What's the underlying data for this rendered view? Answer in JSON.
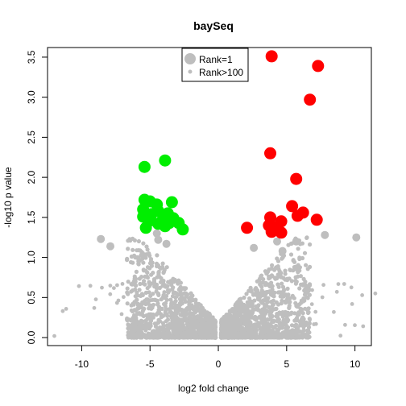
{
  "chart_data": {
    "type": "scatter",
    "title": "baySeq",
    "xlabel": "log2 fold change",
    "ylabel": "-log10 p value",
    "xlim": [
      -12.5,
      11.2
    ],
    "ylim": [
      -0.1,
      3.62
    ],
    "xticks": [
      -10,
      -5,
      0,
      5,
      10
    ],
    "yticks": [
      0.0,
      0.5,
      1.0,
      1.5,
      2.0,
      2.5,
      3.0,
      3.5
    ],
    "xtick_labels": [
      "-10",
      "-5",
      "0",
      "5",
      "10"
    ],
    "ytick_labels": [
      "0.0",
      "0.5",
      "1.0",
      "1.5",
      "2.0",
      "2.5",
      "3.0",
      "3.5"
    ],
    "grid": false,
    "legend": {
      "position": "top-center",
      "entries": [
        {
          "label": "Rank=1",
          "size": "large",
          "color": "#bebebe"
        },
        {
          "label": "Rank>100",
          "size": "small",
          "color": "#bebebe"
        }
      ]
    },
    "colors": {
      "down": "#00ee00",
      "up": "#ff0000",
      "other": "#bebebe"
    },
    "series": [
      {
        "color": "#00ee00",
        "points": [
          [
            -5.4,
            2.13
          ],
          [
            -3.9,
            2.21
          ],
          [
            -5.4,
            1.72
          ],
          [
            -5.0,
            1.7
          ],
          [
            -4.5,
            1.66
          ],
          [
            -3.4,
            1.69
          ],
          [
            -5.5,
            1.6
          ],
          [
            -4.9,
            1.54
          ],
          [
            -4.4,
            1.58
          ],
          [
            -3.7,
            1.55
          ],
          [
            -5.5,
            1.51
          ],
          [
            -3.3,
            1.49
          ],
          [
            -4.1,
            1.46
          ],
          [
            -5.0,
            1.46
          ],
          [
            -4.4,
            1.42
          ],
          [
            -3.6,
            1.43
          ],
          [
            -2.9,
            1.43
          ],
          [
            -5.3,
            1.37
          ],
          [
            -3.9,
            1.39
          ],
          [
            -2.6,
            1.35
          ]
        ]
      },
      {
        "color": "#ff0000",
        "points": [
          [
            3.9,
            3.51
          ],
          [
            7.3,
            3.39
          ],
          [
            6.7,
            2.97
          ],
          [
            3.8,
            2.3
          ],
          [
            5.7,
            1.98
          ],
          [
            5.4,
            1.64
          ],
          [
            6.2,
            1.56
          ],
          [
            5.8,
            1.52
          ],
          [
            7.2,
            1.47
          ],
          [
            3.8,
            1.5
          ],
          [
            4.6,
            1.45
          ],
          [
            3.7,
            1.4
          ],
          [
            4.1,
            1.38
          ],
          [
            2.1,
            1.37
          ],
          [
            3.9,
            1.32
          ],
          [
            4.6,
            1.31
          ]
        ]
      }
    ],
    "other_points": {
      "color": "#bebebe",
      "note": "dense cloud of Rank>100 points, |log2FC| mostly 0-7, p value 0-1.3",
      "highlight_gray": [
        [
          -8.6,
          1.23
        ],
        [
          -7.9,
          1.14
        ],
        [
          -4.5,
          1.3
        ],
        [
          -4.4,
          1.22
        ],
        [
          -3.8,
          1.17
        ],
        [
          2.6,
          1.12
        ],
        [
          4.3,
          1.2
        ],
        [
          4.7,
          1.08
        ],
        [
          5.7,
          1.2
        ],
        [
          7.8,
          1.28
        ],
        [
          10.1,
          1.25
        ]
      ]
    }
  }
}
